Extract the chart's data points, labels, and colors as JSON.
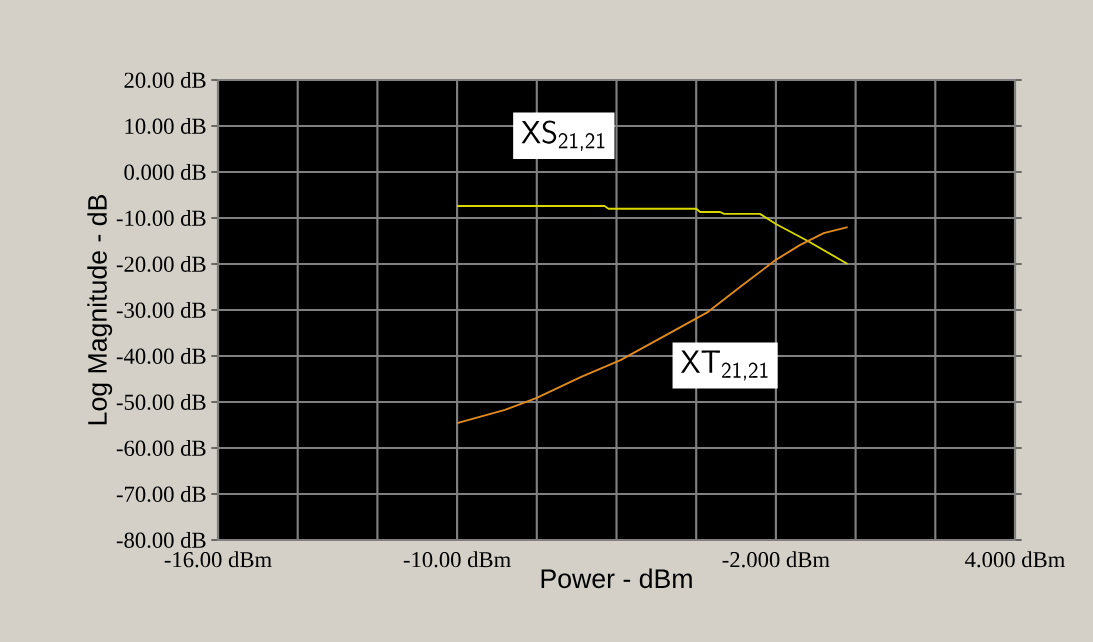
{
  "chart_data": {
    "type": "line",
    "xlabel": "Power - dBm",
    "ylabel": "Log Magnitude - dB",
    "xlim": [
      -16,
      4
    ],
    "ylim": [
      -80,
      20
    ],
    "xticks": [
      {
        "value": -16,
        "label": "-16.00 dBm"
      },
      {
        "value": -14,
        "label": null
      },
      {
        "value": -12,
        "label": null
      },
      {
        "value": -10,
        "label": "-10.00 dBm"
      },
      {
        "value": -8,
        "label": null
      },
      {
        "value": -6,
        "label": null
      },
      {
        "value": -4,
        "label": null
      },
      {
        "value": -2,
        "label": "-2.000 dBm"
      },
      {
        "value": 0,
        "label": null
      },
      {
        "value": 2,
        "label": null
      },
      {
        "value": 4,
        "label": "4.000 dBm"
      }
    ],
    "yticks": [
      {
        "value": 20,
        "label": "20.00 dB"
      },
      {
        "value": 10,
        "label": "10.00 dB"
      },
      {
        "value": 0,
        "label": "0.000 dB"
      },
      {
        "value": -10,
        "label": "-10.00 dB"
      },
      {
        "value": -20,
        "label": "-20.00 dB"
      },
      {
        "value": -30,
        "label": "-30.00 dB"
      },
      {
        "value": -40,
        "label": "-40.00 dB"
      },
      {
        "value": -50,
        "label": "-50.00 dB"
      },
      {
        "value": -60,
        "label": "-60.00 dB"
      },
      {
        "value": -70,
        "label": "-70.00 dB"
      },
      {
        "value": -80,
        "label": "-80.00 dB"
      }
    ],
    "grid": true,
    "legend": false,
    "marker": "none",
    "line_style": "solid",
    "series": [
      {
        "name": "XS$_{21,21}$",
        "color": "#d8d800",
        "x": [
          -10,
          -6.3,
          -6.2,
          -4,
          -3.9,
          -3.4,
          -3.3,
          -2.4,
          -2,
          -1.2,
          -0.2
        ],
        "values": [
          -7.4,
          -7.4,
          -8,
          -8,
          -8.7,
          -8.7,
          -9.1,
          -9.1,
          -11.3,
          -15,
          -20
        ]
      },
      {
        "name": "XT$_{21,21}$",
        "color": "#e08a1e",
        "x": [
          -10,
          -8.8,
          -8,
          -6.9,
          -5.9,
          -4.7,
          -3.7,
          -2.9,
          -2,
          -1.4,
          -0.8,
          -0.2
        ],
        "values": [
          -54.6,
          -51.7,
          -49.1,
          -44.6,
          -40.9,
          -35.2,
          -30.4,
          -25,
          -19.1,
          -15.9,
          -13.3,
          -12
        ]
      }
    ]
  }
}
